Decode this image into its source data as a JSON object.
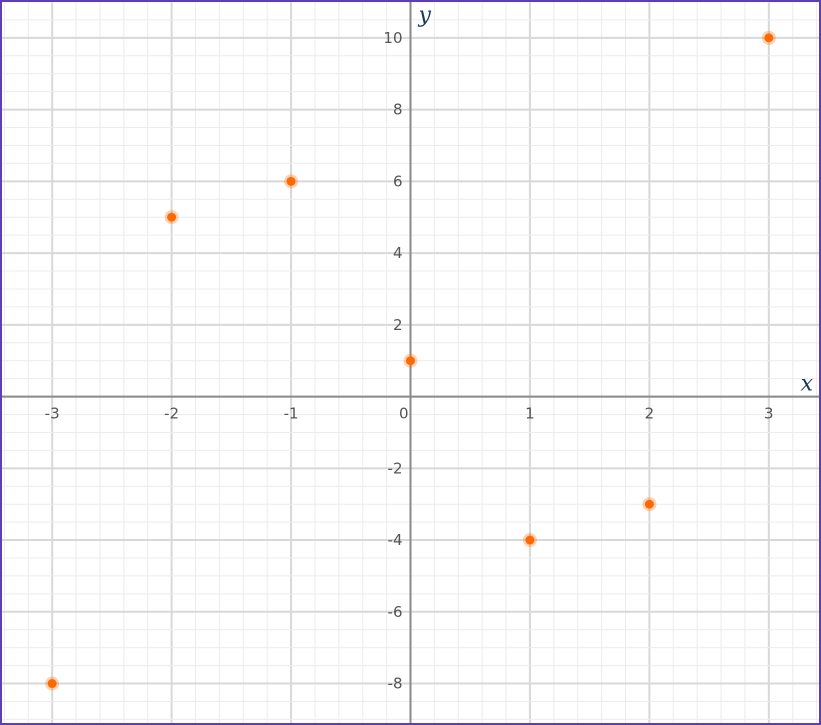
{
  "chart_data": {
    "type": "scatter",
    "title": "",
    "xlabel": "x",
    "ylabel": "y",
    "xlim": [
      -3.42,
      3.42
    ],
    "ylim": [
      -9.1,
      11
    ],
    "x_ticks": [
      -3,
      -2,
      -1,
      0,
      1,
      2,
      3
    ],
    "y_ticks": [
      -8,
      -6,
      -4,
      -2,
      2,
      4,
      6,
      8,
      10
    ],
    "x_tick_labels": [
      "-3",
      "-2",
      "-1",
      "0",
      "1",
      "2",
      "3"
    ],
    "y_tick_labels": [
      "-8",
      "-6",
      "-4",
      "-2",
      "2",
      "4",
      "6",
      "8",
      "10"
    ],
    "grid": true,
    "points": [
      {
        "x": -3,
        "y": -8
      },
      {
        "x": -2,
        "y": 5
      },
      {
        "x": -1,
        "y": 6
      },
      {
        "x": 0,
        "y": 1
      },
      {
        "x": 1,
        "y": -4
      },
      {
        "x": 2,
        "y": -3
      },
      {
        "x": 3,
        "y": 10
      }
    ],
    "colors": {
      "point": "#ff6a00",
      "axis": "#8a8a8a",
      "border": "#5c3fb5"
    }
  }
}
